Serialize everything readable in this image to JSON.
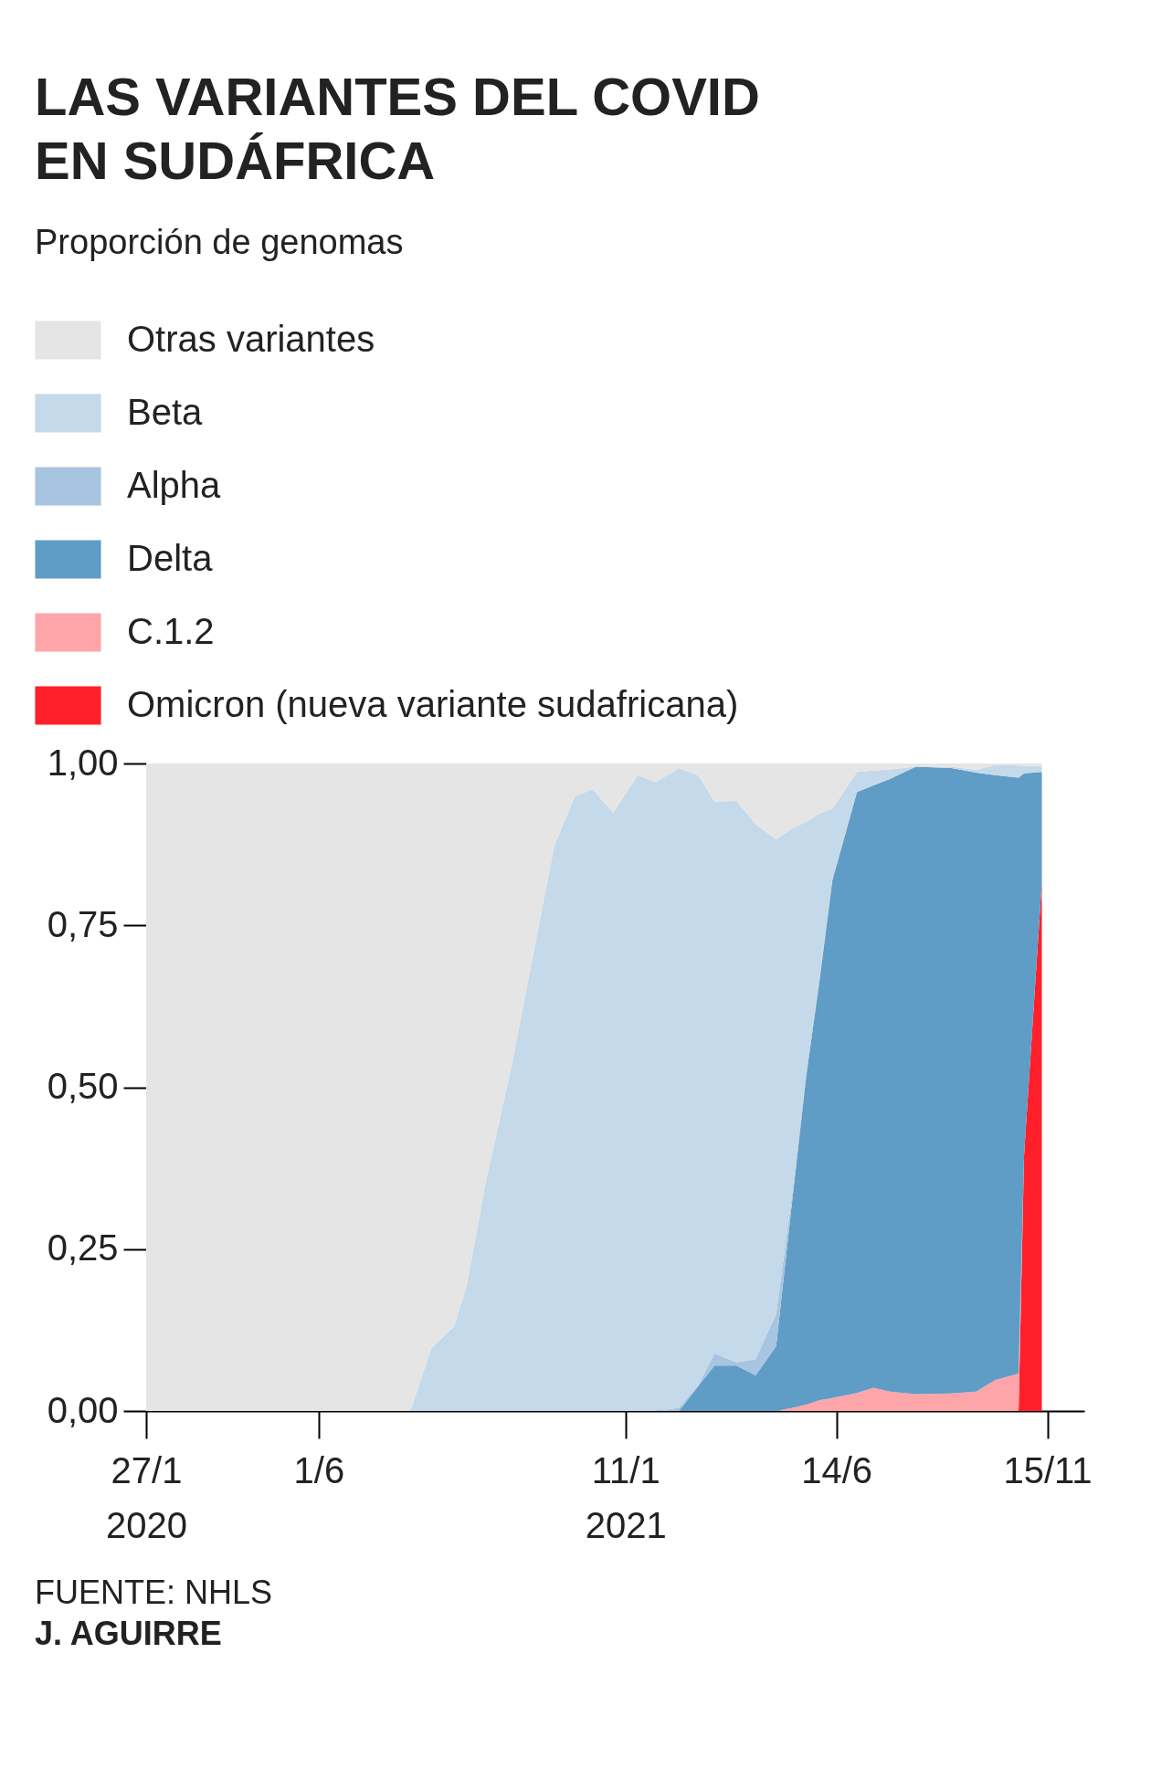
{
  "chart_data": {
    "type": "area",
    "title": "LAS VARIANTES DEL COVID\nEN SUDÁFRICA",
    "subtitle": "Proporción de genomas",
    "stacked": true,
    "legend": "top",
    "x": [
      "2020-01-27",
      "2020-08-07",
      "2020-08-22",
      "2020-09-08",
      "2020-09-17",
      "2020-10-01",
      "2020-10-20",
      "2020-11-20",
      "2020-12-05",
      "2020-12-18",
      "2021-01-02",
      "2021-01-20",
      "2021-02-02",
      "2021-02-19",
      "2021-03-05",
      "2021-03-17",
      "2021-04-02",
      "2021-04-16",
      "2021-05-01",
      "2021-05-13",
      "2021-05-23",
      "2021-06-02",
      "2021-06-11",
      "2021-06-29",
      "2021-07-11",
      "2021-07-23",
      "2021-08-11",
      "2021-09-06",
      "2021-09-24",
      "2021-10-08",
      "2021-10-25",
      "2021-10-29",
      "2021-11-11"
    ],
    "xlim": [
      "2020-01-27",
      "2021-12-12"
    ],
    "xticks": [
      {
        "value": "2020-01-27",
        "label": "27/1\n2020"
      },
      {
        "value": "2020-06-01",
        "label": "1/6"
      },
      {
        "value": "2021-01-11",
        "label": "11/1\n2021"
      },
      {
        "value": "2021-06-14",
        "label": "14/6"
      },
      {
        "value": "2021-11-15",
        "label": "15/11"
      }
    ],
    "ylim": [
      0,
      1
    ],
    "yticks": [
      {
        "value": 0,
        "label": "0,00"
      },
      {
        "value": 0.25,
        "label": "0,25"
      },
      {
        "value": 0.5,
        "label": "0,50"
      },
      {
        "value": 0.75,
        "label": "0,75"
      },
      {
        "value": 1,
        "label": "1,00"
      }
    ],
    "series": [
      {
        "name": "Omicron (nueva variante sudafricana)",
        "color": "#ff1f2a",
        "values": [
          null,
          null,
          null,
          null,
          null,
          null,
          null,
          null,
          null,
          null,
          null,
          null,
          null,
          null,
          null,
          null,
          null,
          null,
          null,
          null,
          null,
          null,
          null,
          null,
          null,
          null,
          null,
          null,
          null,
          null,
          0,
          0.395,
          0.817
        ]
      },
      {
        "name": "C.1.2",
        "color": "#fda5a8",
        "values": [
          null,
          null,
          null,
          null,
          null,
          null,
          null,
          null,
          null,
          null,
          null,
          null,
          null,
          null,
          null,
          null,
          null,
          null,
          0,
          0.005,
          0.01,
          0.017,
          0.02,
          0.028,
          0.036,
          0.03,
          0.026,
          0.027,
          0.03,
          0.048,
          0.058,
          0,
          null
        ]
      },
      {
        "name": "Delta",
        "color": "#5f9cc6",
        "values": [
          null,
          null,
          null,
          null,
          null,
          null,
          null,
          null,
          null,
          null,
          null,
          null,
          null,
          0,
          0.038,
          0.07,
          0.07,
          0.055,
          0.1,
          0.325,
          0.508,
          0.653,
          0.799,
          0.928,
          0.93,
          0.946,
          0.969,
          0.966,
          0.956,
          0.934,
          0.92,
          0.59,
          0.17
        ]
      },
      {
        "name": "Alpha",
        "color": "#a7c4e0",
        "values": [
          null,
          null,
          null,
          null,
          null,
          null,
          null,
          null,
          null,
          null,
          null,
          null,
          0,
          0.005,
          0.002,
          0.019,
          0.005,
          0.025,
          0.05,
          0.01,
          0.007,
          0.005,
          0.003,
          0,
          null,
          null,
          null,
          null,
          null,
          null,
          null,
          null,
          null
        ]
      },
      {
        "name": "Beta",
        "color": "#c4d9ea",
        "values": [
          null,
          0,
          0.096,
          0.131,
          0.193,
          0.354,
          0.535,
          0.873,
          0.949,
          0.96,
          0.924,
          0.982,
          0.971,
          0.988,
          0.942,
          0.852,
          0.867,
          0.826,
          0.733,
          0.56,
          0.385,
          0.248,
          0.108,
          0.031,
          0.023,
          0.015,
          0,
          0.002,
          0.004,
          0.016,
          0.019,
          0.011,
          0.009
        ]
      },
      {
        "name": "Otras variantes",
        "color": "#e5e5e5",
        "values": [
          1,
          1,
          0.904,
          0.869,
          0.807,
          0.646,
          0.465,
          0.127,
          0.051,
          0.04,
          0.076,
          0.018,
          0.029,
          0.007,
          0.018,
          0.059,
          0.058,
          0.094,
          0.117,
          0.1,
          0.09,
          0.077,
          0.07,
          0.013,
          0.011,
          0.009,
          0.005,
          0.005,
          0.01,
          0.002,
          0.003,
          0.004,
          0.004
        ]
      }
    ],
    "annotations": [
      "FUENTE: NHLS",
      "J. AGUIRRE"
    ]
  }
}
